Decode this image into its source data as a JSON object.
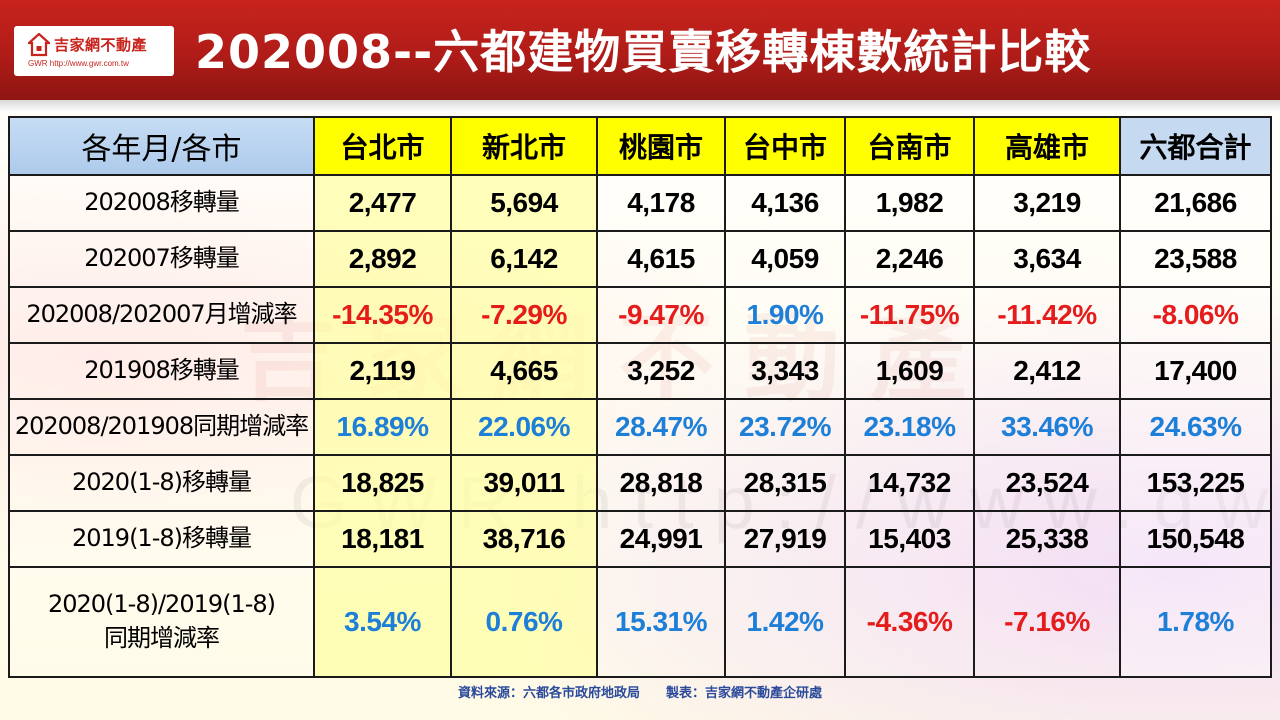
{
  "header": {
    "logo_name": "吉家網不動產",
    "logo_url": "GWR http://www.gwr.com.tw",
    "title": "202008--六都建物買賣移轉棟數統計比較"
  },
  "watermark": {
    "text": "吉家網不動產",
    "url": "GWR http://www.gwr.com.tw"
  },
  "table": {
    "corner_label": "各年月/各市",
    "columns": [
      "台北市",
      "新北市",
      "桃園市",
      "台中市",
      "台南市",
      "高雄市",
      "六都合計"
    ],
    "rows": [
      {
        "label": "202008移轉量",
        "values": [
          "2,477",
          "5,694",
          "4,178",
          "4,136",
          "1,982",
          "3,219",
          "21,686"
        ],
        "tones": [
          "",
          "",
          "",
          "",
          "",
          "",
          ""
        ]
      },
      {
        "label": "202007移轉量",
        "values": [
          "2,892",
          "6,142",
          "4,615",
          "4,059",
          "2,246",
          "3,634",
          "23,588"
        ],
        "tones": [
          "",
          "",
          "",
          "",
          "",
          "",
          ""
        ]
      },
      {
        "label": "202008/202007月增減率",
        "values": [
          "-14.35%",
          "-7.29%",
          "-9.47%",
          "1.90%",
          "-11.75%",
          "-11.42%",
          "-8.06%"
        ],
        "tones": [
          "neg",
          "neg",
          "neg",
          "pos",
          "neg",
          "neg",
          "neg"
        ]
      },
      {
        "label": "201908移轉量",
        "values": [
          "2,119",
          "4,665",
          "3,252",
          "3,343",
          "1,609",
          "2,412",
          "17,400"
        ],
        "tones": [
          "",
          "",
          "",
          "",
          "",
          "",
          ""
        ]
      },
      {
        "label": "202008/201908同期增減率",
        "values": [
          "16.89%",
          "22.06%",
          "28.47%",
          "23.72%",
          "23.18%",
          "33.46%",
          "24.63%"
        ],
        "tones": [
          "pos",
          "pos",
          "pos",
          "pos",
          "pos",
          "pos",
          "pos"
        ]
      },
      {
        "label": "2020(1-8)移轉量",
        "values": [
          "18,825",
          "39,011",
          "28,818",
          "28,315",
          "14,732",
          "23,524",
          "153,225"
        ],
        "tones": [
          "",
          "",
          "",
          "",
          "",
          "",
          ""
        ]
      },
      {
        "label": "2019(1-8)移轉量",
        "values": [
          "18,181",
          "38,716",
          "24,991",
          "27,919",
          "15,403",
          "25,338",
          "150,548"
        ],
        "tones": [
          "",
          "",
          "",
          "",
          "",
          "",
          ""
        ]
      },
      {
        "label_lines": [
          "2020(1-8)/2019(1-8)",
          "同期增減率"
        ],
        "values": [
          "3.54%",
          "0.76%",
          "15.31%",
          "1.42%",
          "-4.36%",
          "-7.16%",
          "1.78%"
        ],
        "tones": [
          "pos",
          "pos",
          "pos",
          "pos",
          "neg",
          "neg",
          "pos"
        ]
      }
    ]
  },
  "footer": {
    "source": "資料來源：六都各市政府地政局",
    "maker": "製表：吉家網不動產企研處"
  }
}
